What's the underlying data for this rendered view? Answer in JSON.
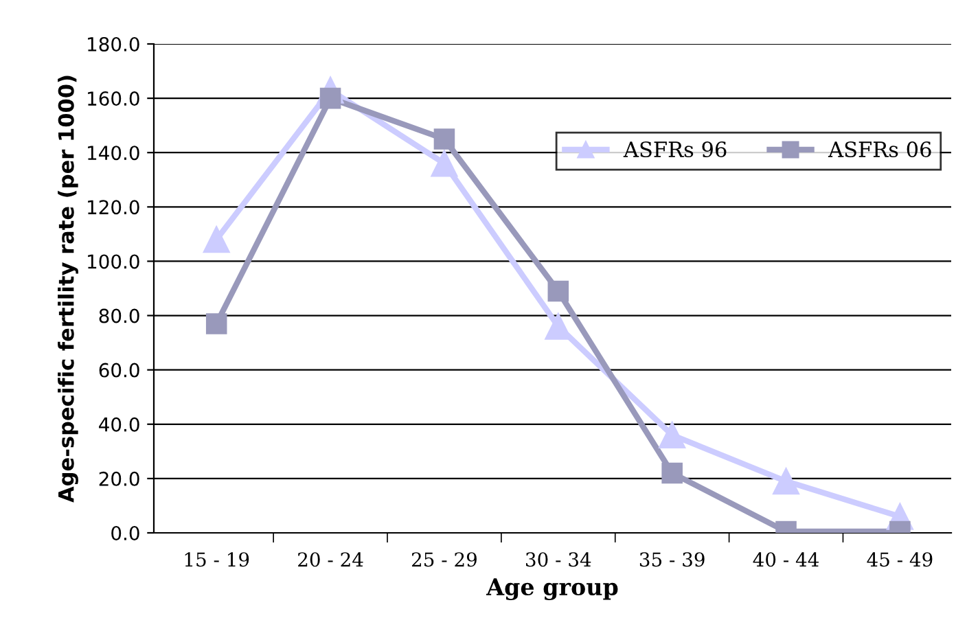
{
  "chart_data": {
    "type": "line",
    "xlabel": "Age group",
    "ylabel": "Age-specific fertility rate (per 1000)",
    "categories": [
      "15 - 19",
      "20 - 24",
      "25 - 29",
      "30 - 34",
      "35 - 39",
      "40 - 44",
      "45 - 49"
    ],
    "series": [
      {
        "name": "ASFRs 96",
        "color": "#ccccff",
        "marker": "triangle",
        "values": [
          108,
          163,
          136,
          76,
          36,
          19,
          6
        ]
      },
      {
        "name": "ASFRs 06",
        "color": "#9999bb",
        "marker": "square",
        "values": [
          77,
          160,
          145,
          89,
          22,
          0.5,
          0.5
        ]
      }
    ],
    "ylim": [
      0,
      180
    ],
    "yticks": [
      {
        "value": 0,
        "label": "0.0"
      },
      {
        "value": 20,
        "label": "20.0"
      },
      {
        "value": 40,
        "label": "40.0"
      },
      {
        "value": 60,
        "label": "60.0"
      },
      {
        "value": 80,
        "label": "80.0"
      },
      {
        "value": 100,
        "label": "100.0"
      },
      {
        "value": 120,
        "label": "120.0"
      },
      {
        "value": 140,
        "label": "140.0"
      },
      {
        "value": 160,
        "label": "160.0"
      },
      {
        "value": 180,
        "label": "180.0"
      }
    ],
    "grid": "y",
    "legend": "top right",
    "line_style": "solid"
  }
}
